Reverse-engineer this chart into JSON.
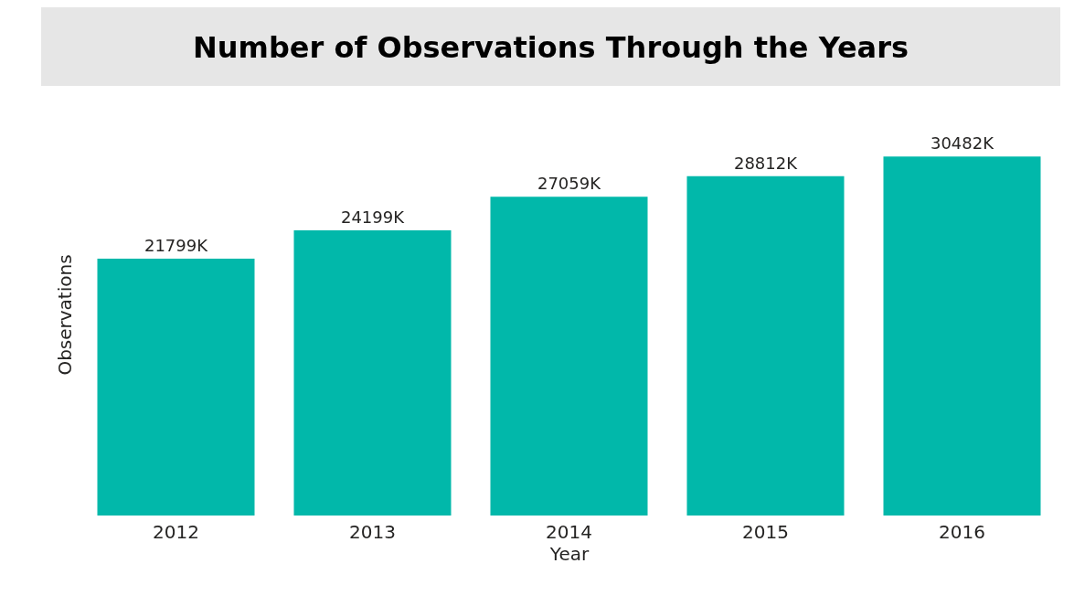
{
  "chart_data": {
    "type": "bar",
    "title": "Number of Observations Through the Years",
    "xlabel": "Year",
    "ylabel": "Observations",
    "categories": [
      "2012",
      "2013",
      "2014",
      "2015",
      "2016"
    ],
    "values": [
      21799,
      24199,
      27059,
      28812,
      30482
    ],
    "value_labels": [
      "21799K",
      "24199K",
      "27059K",
      "28812K",
      "30482K"
    ],
    "color": "#01b8aa",
    "grid": false
  }
}
